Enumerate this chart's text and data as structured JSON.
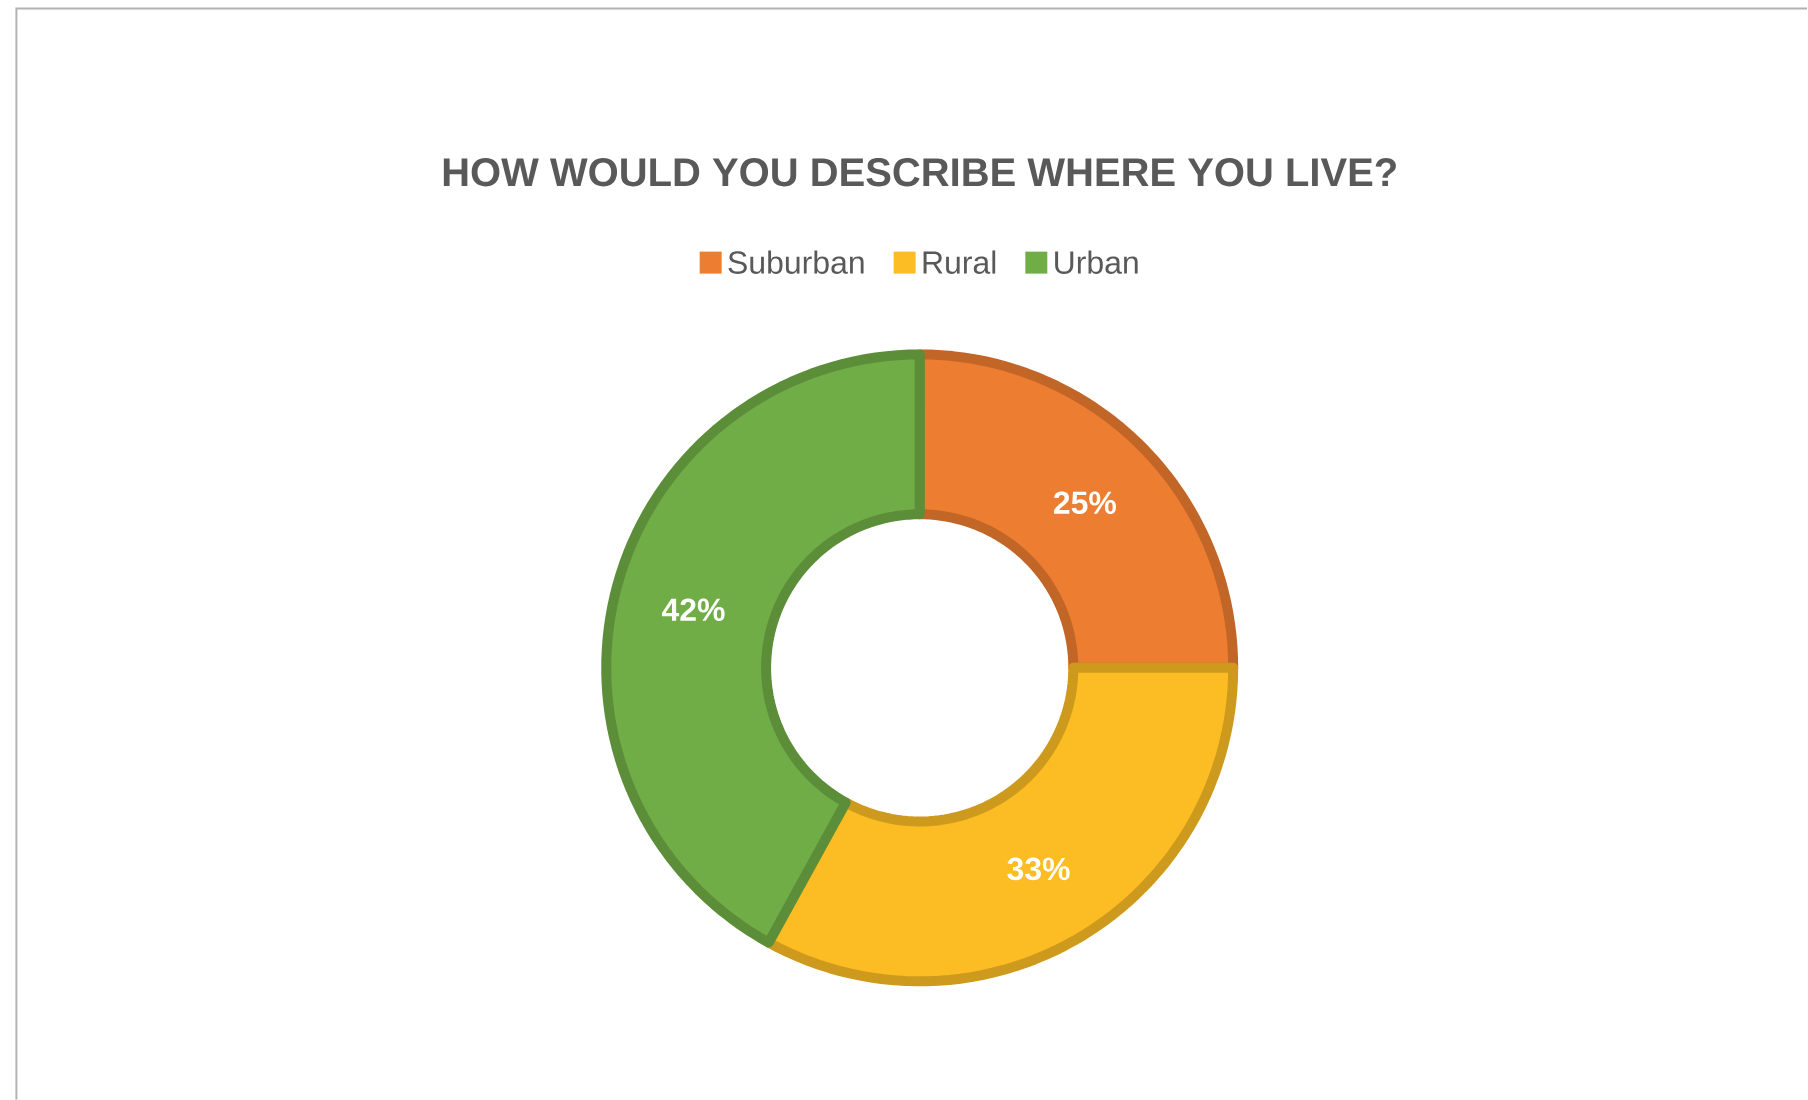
{
  "chart_data": {
    "type": "donut",
    "title": "HOW WOULD YOU DESCRIBE WHERE YOU LIVE?",
    "categories": [
      "Suburban",
      "Rural",
      "Urban"
    ],
    "values": [
      25,
      33,
      42
    ],
    "colors": [
      "#ed7d31",
      "#fbbc24",
      "#70ad47"
    ],
    "value_labels": [
      "25%",
      "33%",
      "42%"
    ],
    "legend": "top"
  }
}
